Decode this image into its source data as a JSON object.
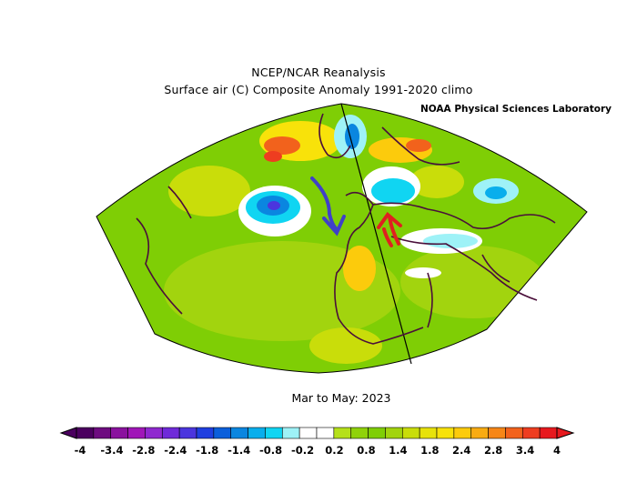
{
  "header": {
    "title": "NCEP/NCAR Reanalysis",
    "subtitle": "Surface air (C) Composite Anomaly 1991-2020 climo",
    "lab": "NOAA Physical Sciences Laboratory"
  },
  "period": "Mar to May: 2023",
  "colorbar": {
    "tick_labels": [
      "-4",
      "-3.4",
      "-2.8",
      "-2.4",
      "-1.8",
      "-1.4",
      "-0.8",
      "-0.2",
      "0.2",
      "0.8",
      "1.4",
      "1.8",
      "2.4",
      "2.8",
      "3.4",
      "4"
    ],
    "colors": [
      "#4b005f",
      "#6e0c80",
      "#8a129e",
      "#a016b8",
      "#8f28cf",
      "#6f2ad9",
      "#4b35de",
      "#1f3fe0",
      "#0b5fdb",
      "#0a86e0",
      "#08aeec",
      "#10d5f2",
      "#9ef2f7",
      "#ffffff",
      "#ffffff",
      "#b5e01a",
      "#90d20a",
      "#7fce05",
      "#a2d40e",
      "#c9dd0a",
      "#e7e20a",
      "#f8e20a",
      "#fccb0c",
      "#f9ab11",
      "#f68617",
      "#f2621c",
      "#ee3d20",
      "#e7191e"
    ]
  },
  "annotations": {
    "blue_arrow": "southward flow arrow",
    "red_arrow": "northward flow arrow"
  }
}
